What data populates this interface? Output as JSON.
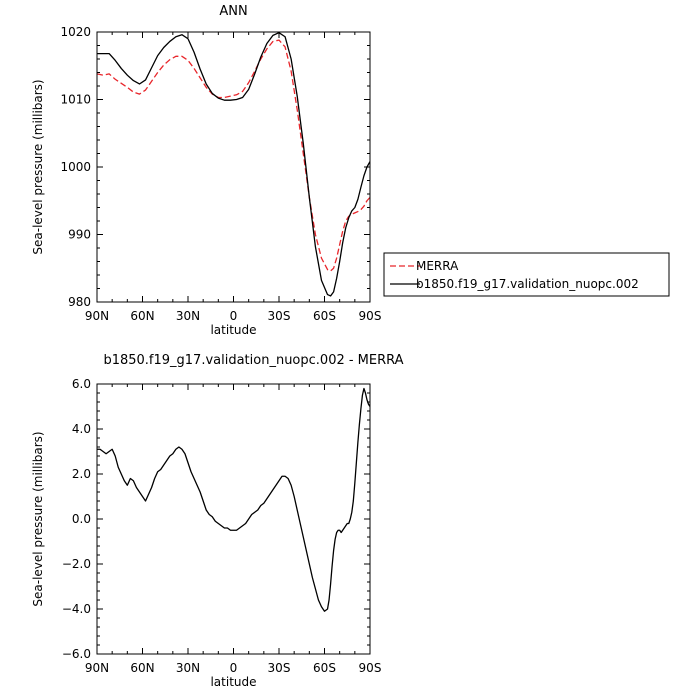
{
  "chart_data": [
    {
      "type": "line",
      "title": "ANN",
      "xlabel": "latitude",
      "ylabel": "Sea-level pressure (millibars)",
      "xlim": [
        90,
        -90
      ],
      "ylim": [
        980,
        1020
      ],
      "x_ticks": [
        90,
        60,
        30,
        0,
        -30,
        -60,
        -90
      ],
      "x_tick_labels": [
        "90N",
        "60N",
        "30N",
        "0",
        "30S",
        "60S",
        "90S"
      ],
      "y_ticks": [
        980,
        990,
        1000,
        1010,
        1020
      ],
      "y_tick_labels": [
        "980",
        "990",
        "1000",
        "1010",
        "1020"
      ],
      "legend_position": "right-bottom",
      "series": [
        {
          "name": "MERRA",
          "color": "#e8262b",
          "dash": "dashed",
          "x": [
            90,
            86,
            82,
            78,
            74,
            70,
            66,
            62,
            58,
            54,
            50,
            46,
            42,
            38,
            34,
            30,
            26,
            22,
            18,
            14,
            10,
            6,
            2,
            -2,
            -6,
            -10,
            -14,
            -18,
            -22,
            -26,
            -30,
            -34,
            -38,
            -42,
            -46,
            -50,
            -54,
            -58,
            -62,
            -64,
            -66,
            -68,
            -70,
            -72,
            -74,
            -76,
            -78,
            -80,
            -82,
            -84,
            -86,
            -88,
            -90
          ],
          "values": [
            1013.8,
            1013.6,
            1013.8,
            1013.0,
            1012.4,
            1011.8,
            1011.1,
            1010.8,
            1011.4,
            1012.7,
            1014.0,
            1015.1,
            1015.9,
            1016.4,
            1016.4,
            1015.8,
            1014.6,
            1013.2,
            1011.8,
            1010.8,
            1010.3,
            1010.3,
            1010.5,
            1010.7,
            1011.2,
            1012.5,
            1014.2,
            1016.0,
            1017.5,
            1018.6,
            1018.8,
            1017.8,
            1014.2,
            1008.5,
            1002.0,
            995.5,
            990.0,
            986.5,
            984.8,
            984.6,
            985.0,
            986.5,
            988.5,
            990.5,
            992.0,
            992.7,
            993.0,
            993.2,
            993.4,
            993.7,
            994.2,
            995.0,
            995.5
          ]
        },
        {
          "name": "b1850.f19_g17.validation_nuopc.002",
          "color": "#000000",
          "dash": "solid",
          "x": [
            90,
            86,
            82,
            78,
            74,
            70,
            66,
            62,
            58,
            54,
            50,
            46,
            42,
            38,
            34,
            30,
            26,
            22,
            18,
            14,
            10,
            6,
            2,
            -2,
            -6,
            -10,
            -14,
            -18,
            -22,
            -26,
            -30,
            -34,
            -38,
            -42,
            -46,
            -50,
            -54,
            -58,
            -62,
            -64,
            -66,
            -68,
            -70,
            -72,
            -74,
            -76,
            -78,
            -80,
            -82,
            -84,
            -86,
            -88,
            -90
          ],
          "values": [
            1016.8,
            1016.8,
            1016.8,
            1015.8,
            1014.6,
            1013.6,
            1012.8,
            1012.3,
            1012.9,
            1014.7,
            1016.5,
            1017.7,
            1018.6,
            1019.3,
            1019.6,
            1019.0,
            1017.0,
            1014.5,
            1012.3,
            1010.9,
            1010.2,
            1009.9,
            1009.9,
            1010.0,
            1010.3,
            1011.5,
            1013.8,
            1016.3,
            1018.3,
            1019.5,
            1019.9,
            1019.3,
            1016.0,
            1010.5,
            1003.5,
            995.5,
            988.2,
            983.2,
            981.1,
            980.9,
            981.5,
            983.5,
            986.0,
            988.8,
            991.0,
            992.5,
            993.5,
            994.0,
            995.2,
            997.0,
            998.7,
            1000.0,
            1000.8
          ]
        }
      ]
    },
    {
      "type": "line",
      "title": "b1850.f19_g17.validation_nuopc.002 - MERRA",
      "xlabel": "latitude",
      "ylabel": "Sea-level pressure (millibars)",
      "xlim": [
        90,
        -90
      ],
      "ylim": [
        -6.0,
        6.0
      ],
      "x_ticks": [
        90,
        60,
        30,
        0,
        -30,
        -60,
        -90
      ],
      "x_tick_labels": [
        "90N",
        "60N",
        "30N",
        "0",
        "30S",
        "60S",
        "90S"
      ],
      "y_ticks": [
        -6.0,
        -4.0,
        -2.0,
        0.0,
        2.0,
        4.0,
        6.0
      ],
      "y_tick_labels": [
        "−6.0",
        "−4.0",
        "−2.0",
        "0.0",
        "2.0",
        "4.0",
        "6.0"
      ],
      "series": [
        {
          "color": "#000000",
          "dash": "solid",
          "x": [
            90,
            88,
            86,
            84,
            82,
            80,
            78,
            76,
            74,
            72,
            70,
            68,
            66,
            64,
            62,
            60,
            58,
            56,
            54,
            52,
            50,
            48,
            46,
            44,
            42,
            40,
            38,
            36,
            34,
            32,
            30,
            28,
            26,
            24,
            22,
            20,
            18,
            16,
            14,
            12,
            10,
            8,
            6,
            4,
            2,
            0,
            -2,
            -4,
            -6,
            -8,
            -10,
            -12,
            -14,
            -16,
            -18,
            -20,
            -22,
            -24,
            -26,
            -28,
            -30,
            -32,
            -34,
            -36,
            -38,
            -40,
            -42,
            -44,
            -46,
            -48,
            -50,
            -52,
            -54,
            -56,
            -58,
            -60,
            -62,
            -63,
            -64,
            -65,
            -66,
            -67,
            -68,
            -69,
            -70,
            -71,
            -72,
            -73,
            -74,
            -75,
            -76,
            -77,
            -78,
            -79,
            -80,
            -81,
            -82,
            -83,
            -84,
            -85,
            -86,
            -87,
            -88,
            -89,
            -90
          ],
          "values": [
            3.1,
            3.1,
            3.0,
            2.9,
            3.0,
            3.1,
            2.8,
            2.3,
            2.0,
            1.7,
            1.5,
            1.8,
            1.7,
            1.4,
            1.2,
            1.0,
            0.8,
            1.1,
            1.4,
            1.8,
            2.1,
            2.2,
            2.4,
            2.6,
            2.8,
            2.9,
            3.1,
            3.2,
            3.1,
            2.9,
            2.5,
            2.1,
            1.8,
            1.5,
            1.2,
            0.8,
            0.4,
            0.2,
            0.1,
            -0.1,
            -0.2,
            -0.3,
            -0.4,
            -0.4,
            -0.5,
            -0.5,
            -0.5,
            -0.4,
            -0.3,
            -0.2,
            0.0,
            0.2,
            0.3,
            0.4,
            0.6,
            0.7,
            0.9,
            1.1,
            1.3,
            1.5,
            1.7,
            1.9,
            1.9,
            1.8,
            1.5,
            1.0,
            0.4,
            -0.2,
            -0.8,
            -1.4,
            -2.0,
            -2.6,
            -3.1,
            -3.6,
            -3.9,
            -4.1,
            -4.0,
            -3.6,
            -2.9,
            -2.1,
            -1.4,
            -0.9,
            -0.6,
            -0.5,
            -0.5,
            -0.6,
            -0.5,
            -0.4,
            -0.3,
            -0.2,
            -0.2,
            0.0,
            0.3,
            0.8,
            1.6,
            2.5,
            3.4,
            4.2,
            4.9,
            5.5,
            5.8,
            5.6,
            5.3,
            5.1,
            5.0
          ]
        }
      ]
    }
  ],
  "legend": {
    "items": [
      "MERRA",
      "b1850.f19_g17.validation_nuopc.002"
    ]
  }
}
